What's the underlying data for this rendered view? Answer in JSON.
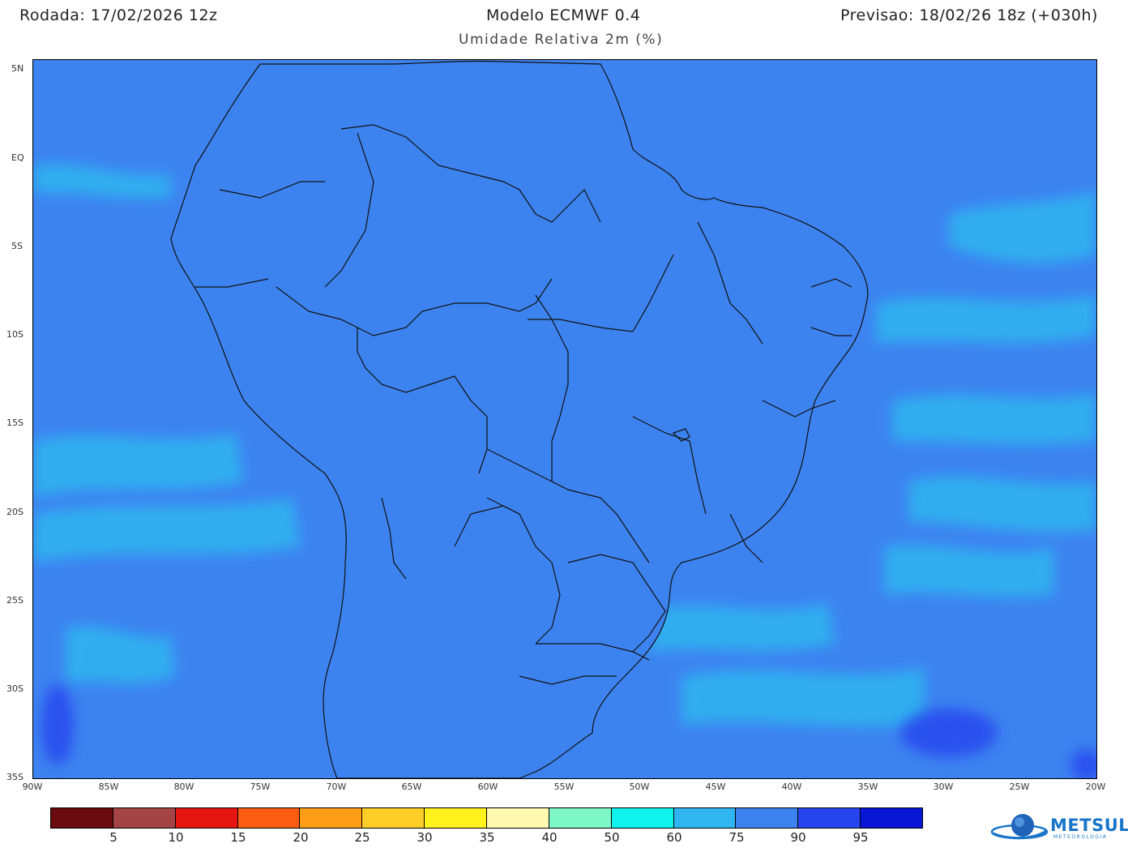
{
  "header": {
    "run": "Rodada: 17/02/2026 12z",
    "model": "Modelo ECMWF 0.4",
    "forecast": "Previsao: 18/02/26 18z (+030h)",
    "variable": "Umidade Relativa 2m (%)"
  },
  "axes": {
    "lat_labels": [
      "5N",
      "EQ",
      "5S",
      "10S",
      "15S",
      "20S",
      "25S",
      "30S",
      "35S"
    ],
    "lon_labels": [
      "90W",
      "85W",
      "80W",
      "75W",
      "70W",
      "65W",
      "60W",
      "55W",
      "50W",
      "45W",
      "40W",
      "35W",
      "30W",
      "25W",
      "20W"
    ]
  },
  "colorbar": {
    "colors": [
      "#6b0a0f",
      "#a54444",
      "#e51612",
      "#fa5d12",
      "#fe9e16",
      "#fece28",
      "#fff11c",
      "#fff9b0",
      "#7ef7c8",
      "#10f2ec",
      "#2fb5ef",
      "#3d83f0",
      "#2745ee",
      "#0a16d6"
    ],
    "labels": [
      "5",
      "10",
      "15",
      "20",
      "25",
      "30",
      "35",
      "40",
      "50",
      "60",
      "75",
      "90",
      "95"
    ]
  },
  "logo": {
    "name": "METSUL",
    "tagline": "METEOROLOGIA"
  }
}
